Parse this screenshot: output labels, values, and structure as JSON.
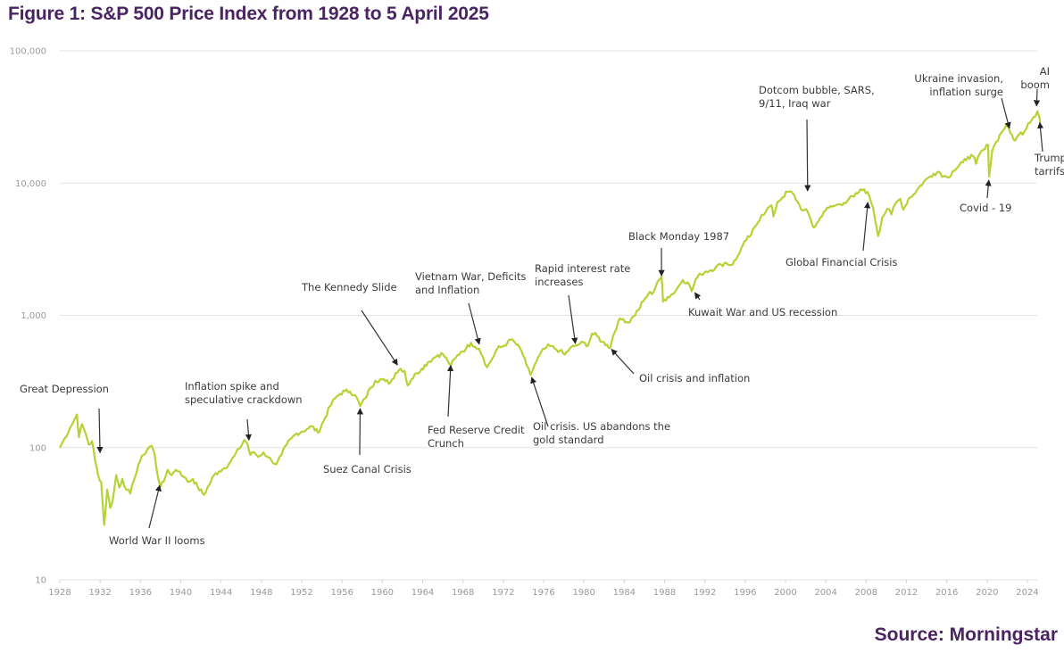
{
  "title": "Figure 1: S&P 500 Price Index from 1928 to 5 April 2025",
  "source": "Source: Morningstar",
  "colors": {
    "line": "#b5d334",
    "title": "#4a2462",
    "grid": "#e2e2e2",
    "arrow": "#333333"
  },
  "chart_data": {
    "type": "line",
    "title": "Figure 1: S&P 500 Price Index from 1928 to 5 April 2025",
    "xlabel": "",
    "ylabel": "",
    "yscale": "log",
    "ylim": [
      10,
      100000
    ],
    "xlim": [
      1928,
      2025.3
    ],
    "grid": true,
    "y_ticks": [
      10,
      100,
      1000,
      10000,
      100000
    ],
    "y_tick_labels": [
      "10",
      "100",
      "1,000",
      "10,000",
      "100,000"
    ],
    "x_ticks": [
      1928,
      1932,
      1936,
      1940,
      1944,
      1948,
      1952,
      1956,
      1960,
      1964,
      1968,
      1972,
      1976,
      1980,
      1984,
      1988,
      1992,
      1996,
      2000,
      2004,
      2008,
      2012,
      2016,
      2020,
      2024
    ],
    "x_tick_labels": [
      "1928",
      "1932",
      "1936",
      "1940",
      "1944",
      "1948",
      "1952",
      "1956",
      "1960",
      "1964",
      "1968",
      "1972",
      "1976",
      "1980",
      "1984",
      "1988",
      "1992",
      "1996",
      "2000",
      "2004",
      "2008",
      "2012",
      "2016",
      "2020",
      "2024"
    ],
    "series": [
      {
        "name": "S&P 500 Price Index",
        "points": [
          [
            1928.0,
            100
          ],
          [
            1928.5,
            118
          ],
          [
            1929.0,
            140
          ],
          [
            1929.4,
            160
          ],
          [
            1929.7,
            178
          ],
          [
            1929.9,
            120
          ],
          [
            1930.2,
            150
          ],
          [
            1930.6,
            125
          ],
          [
            1930.9,
            105
          ],
          [
            1931.2,
            112
          ],
          [
            1931.5,
            80
          ],
          [
            1931.8,
            62
          ],
          [
            1932.1,
            55
          ],
          [
            1932.4,
            26
          ],
          [
            1932.7,
            48
          ],
          [
            1933.0,
            35
          ],
          [
            1933.3,
            42
          ],
          [
            1933.6,
            62
          ],
          [
            1933.9,
            50
          ],
          [
            1934.2,
            58
          ],
          [
            1934.6,
            48
          ],
          [
            1935.0,
            45
          ],
          [
            1935.4,
            58
          ],
          [
            1935.8,
            75
          ],
          [
            1936.3,
            88
          ],
          [
            1936.8,
            100
          ],
          [
            1937.1,
            103
          ],
          [
            1937.4,
            90
          ],
          [
            1937.7,
            62
          ],
          [
            1938.0,
            51
          ],
          [
            1938.3,
            55
          ],
          [
            1938.7,
            68
          ],
          [
            1939.1,
            62
          ],
          [
            1939.5,
            68
          ],
          [
            1939.9,
            66
          ],
          [
            1940.3,
            60
          ],
          [
            1940.7,
            55
          ],
          [
            1941.2,
            58
          ],
          [
            1941.7,
            50
          ],
          [
            1942.3,
            44
          ],
          [
            1942.8,
            52
          ],
          [
            1943.3,
            62
          ],
          [
            1943.8,
            66
          ],
          [
            1944.3,
            70
          ],
          [
            1944.8,
            76
          ],
          [
            1945.3,
            86
          ],
          [
            1945.8,
            98
          ],
          [
            1946.3,
            114
          ],
          [
            1946.6,
            108
          ],
          [
            1946.9,
            88
          ],
          [
            1947.3,
            92
          ],
          [
            1947.7,
            85
          ],
          [
            1948.2,
            92
          ],
          [
            1948.6,
            85
          ],
          [
            1949.0,
            80
          ],
          [
            1949.5,
            75
          ],
          [
            1950.0,
            88
          ],
          [
            1950.5,
            105
          ],
          [
            1951.0,
            118
          ],
          [
            1951.5,
            128
          ],
          [
            1952.0,
            132
          ],
          [
            1952.5,
            138
          ],
          [
            1953.0,
            145
          ],
          [
            1953.6,
            130
          ],
          [
            1954.2,
            160
          ],
          [
            1954.8,
            205
          ],
          [
            1955.3,
            235
          ],
          [
            1955.8,
            255
          ],
          [
            1956.3,
            268
          ],
          [
            1956.8,
            265
          ],
          [
            1957.3,
            250
          ],
          [
            1957.8,
            206
          ],
          [
            1958.3,
            235
          ],
          [
            1958.8,
            282
          ],
          [
            1959.3,
            320
          ],
          [
            1959.8,
            330
          ],
          [
            1960.3,
            318
          ],
          [
            1960.8,
            310
          ],
          [
            1961.3,
            365
          ],
          [
            1961.8,
            395
          ],
          [
            1962.2,
            380
          ],
          [
            1962.5,
            295
          ],
          [
            1962.9,
            330
          ],
          [
            1963.4,
            365
          ],
          [
            1963.9,
            395
          ],
          [
            1964.5,
            440
          ],
          [
            1965.0,
            470
          ],
          [
            1965.5,
            500
          ],
          [
            1966.0,
            510
          ],
          [
            1966.5,
            450
          ],
          [
            1966.8,
            420
          ],
          [
            1967.3,
            480
          ],
          [
            1967.8,
            530
          ],
          [
            1968.3,
            560
          ],
          [
            1968.8,
            620
          ],
          [
            1969.2,
            580
          ],
          [
            1969.6,
            560
          ],
          [
            1970.0,
            480
          ],
          [
            1970.4,
            405
          ],
          [
            1970.9,
            470
          ],
          [
            1971.4,
            560
          ],
          [
            1971.9,
            580
          ],
          [
            1972.4,
            620
          ],
          [
            1972.9,
            660
          ],
          [
            1973.3,
            600
          ],
          [
            1973.8,
            540
          ],
          [
            1974.3,
            420
          ],
          [
            1974.7,
            355
          ],
          [
            1975.1,
            420
          ],
          [
            1975.6,
            500
          ],
          [
            1976.1,
            560
          ],
          [
            1976.6,
            590
          ],
          [
            1977.1,
            560
          ],
          [
            1977.6,
            540
          ],
          [
            1978.1,
            505
          ],
          [
            1978.6,
            560
          ],
          [
            1979.1,
            585
          ],
          [
            1979.6,
            610
          ],
          [
            1980.1,
            620
          ],
          [
            1980.4,
            590
          ],
          [
            1980.8,
            727
          ],
          [
            1981.3,
            700
          ],
          [
            1981.8,
            630
          ],
          [
            1982.3,
            600
          ],
          [
            1982.6,
            565
          ],
          [
            1982.9,
            700
          ],
          [
            1983.4,
            900
          ],
          [
            1983.9,
            940
          ],
          [
            1984.4,
            880
          ],
          [
            1984.9,
            980
          ],
          [
            1985.4,
            1100
          ],
          [
            1985.9,
            1280
          ],
          [
            1986.4,
            1450
          ],
          [
            1986.9,
            1500
          ],
          [
            1987.3,
            1800
          ],
          [
            1987.7,
            1960
          ],
          [
            1987.85,
            1270
          ],
          [
            1988.3,
            1380
          ],
          [
            1988.8,
            1450
          ],
          [
            1989.3,
            1620
          ],
          [
            1989.8,
            1850
          ],
          [
            1990.3,
            1780
          ],
          [
            1990.7,
            1520
          ],
          [
            1991.1,
            1880
          ],
          [
            1991.6,
            2050
          ],
          [
            1992.1,
            2150
          ],
          [
            1992.6,
            2200
          ],
          [
            1993.1,
            2320
          ],
          [
            1993.6,
            2420
          ],
          [
            1994.1,
            2500
          ],
          [
            1994.6,
            2400
          ],
          [
            1995.1,
            2650
          ],
          [
            1995.6,
            3200
          ],
          [
            1996.1,
            3700
          ],
          [
            1996.6,
            4100
          ],
          [
            1997.1,
            4800
          ],
          [
            1997.6,
            5700
          ],
          [
            1998.1,
            6200
          ],
          [
            1998.6,
            6800
          ],
          [
            1998.8,
            5600
          ],
          [
            1999.2,
            7200
          ],
          [
            1999.7,
            7800
          ],
          [
            2000.2,
            8600
          ],
          [
            2000.7,
            8400
          ],
          [
            2001.2,
            7200
          ],
          [
            2001.7,
            6200
          ],
          [
            2002.2,
            6100
          ],
          [
            2002.6,
            5000
          ],
          [
            2002.8,
            4600
          ],
          [
            2003.3,
            5200
          ],
          [
            2003.8,
            6100
          ],
          [
            2004.3,
            6500
          ],
          [
            2004.8,
            6700
          ],
          [
            2005.3,
            6900
          ],
          [
            2005.8,
            7100
          ],
          [
            2006.3,
            7600
          ],
          [
            2006.8,
            7900
          ],
          [
            2007.3,
            8600
          ],
          [
            2007.8,
            9000
          ],
          [
            2008.3,
            8000
          ],
          [
            2008.7,
            6500
          ],
          [
            2009.0,
            4800
          ],
          [
            2009.2,
            3980
          ],
          [
            2009.6,
            5500
          ],
          [
            2010.1,
            6400
          ],
          [
            2010.5,
            5800
          ],
          [
            2010.9,
            7000
          ],
          [
            2011.4,
            7600
          ],
          [
            2011.7,
            6300
          ],
          [
            2012.2,
            7600
          ],
          [
            2012.7,
            8200
          ],
          [
            2013.2,
            9200
          ],
          [
            2013.7,
            10200
          ],
          [
            2014.2,
            11000
          ],
          [
            2014.7,
            11800
          ],
          [
            2015.2,
            12200
          ],
          [
            2015.7,
            11300
          ],
          [
            2016.1,
            11000
          ],
          [
            2016.6,
            12300
          ],
          [
            2017.1,
            13200
          ],
          [
            2017.6,
            14300
          ],
          [
            2018.1,
            15800
          ],
          [
            2018.6,
            16000
          ],
          [
            2018.9,
            14000
          ],
          [
            2019.3,
            16800
          ],
          [
            2019.8,
            18200
          ],
          [
            2020.1,
            19500
          ],
          [
            2020.2,
            11200
          ],
          [
            2020.5,
            17500
          ],
          [
            2020.9,
            20500
          ],
          [
            2021.4,
            24000
          ],
          [
            2021.9,
            27500
          ],
          [
            2022.3,
            24000
          ],
          [
            2022.8,
            21000
          ],
          [
            2023.2,
            23500
          ],
          [
            2023.7,
            24500
          ],
          [
            2024.1,
            28500
          ],
          [
            2024.6,
            31500
          ],
          [
            2025.0,
            35000
          ],
          [
            2025.15,
            32500
          ],
          [
            2025.27,
            28500
          ]
        ]
      }
    ],
    "annotations": [
      {
        "lines": [
          "Great Depression"
        ],
        "target": [
          1932.0,
          86
        ],
        "anchor": "middle"
      },
      {
        "lines": [
          "World War II looms"
        ],
        "target": [
          1938.0,
          55
        ],
        "anchor": "start"
      },
      {
        "lines": [
          "Inflation spike and",
          "speculative crackdown"
        ],
        "target": [
          1946.8,
          107
        ],
        "anchor": "start"
      },
      {
        "lines": [
          "Suez Canal Crisis"
        ],
        "target": [
          1957.8,
          210
        ],
        "anchor": "start"
      },
      {
        "lines": [
          "The Kennedy Slide"
        ],
        "target": [
          1961.7,
          400
        ],
        "anchor": "start"
      },
      {
        "lines": [
          "Fed Reserve Credit",
          "Crunch"
        ],
        "target": [
          1966.8,
          445
        ],
        "anchor": "start"
      },
      {
        "lines": [
          "Vietnam War, Deficits",
          "and Inflation"
        ],
        "target": [
          1969.7,
          570
        ],
        "anchor": "start"
      },
      {
        "lines": [
          "Oil crisis. US abandons the",
          "gold standard"
        ],
        "target": [
          1974.7,
          360
        ],
        "anchor": "start"
      },
      {
        "lines": [
          "Rapid interest rate",
          "increases"
        ],
        "target": [
          1979.2,
          575
        ],
        "anchor": "start"
      },
      {
        "lines": [
          "Oil crisis and inflation"
        ],
        "target": [
          1982.5,
          580
        ],
        "anchor": "start"
      },
      {
        "lines": [
          "Black Monday 1987"
        ],
        "target": [
          1987.7,
          1870
        ],
        "anchor": "start"
      },
      {
        "lines": [
          "Kuwait War and US recession"
        ],
        "target": [
          1990.8,
          1560
        ],
        "anchor": "start"
      },
      {
        "lines": [
          "Dotcom bubble, SARS,",
          "9/11, Iraq war"
        ],
        "target": [
          2002.2,
          8200
        ],
        "anchor": "start"
      },
      {
        "lines": [
          "Global Financial Crisis"
        ],
        "target": [
          2008.2,
          7600
        ],
        "anchor": "start"
      },
      {
        "lines": [
          "Covid - 19"
        ],
        "target": [
          2020.2,
          11200
        ],
        "anchor": "start"
      },
      {
        "lines": [
          "Ukraine invasion,",
          "inflation surge"
        ],
        "target": [
          2022.3,
          24500
        ],
        "anchor": "end"
      },
      {
        "lines": [
          "AI",
          "boom"
        ],
        "target": [
          2024.9,
          36000
        ],
        "anchor": "end"
      },
      {
        "lines": [
          "Trump",
          "tarrifs"
        ],
        "target": [
          2025.2,
          30500
        ],
        "anchor": "start"
      }
    ]
  }
}
